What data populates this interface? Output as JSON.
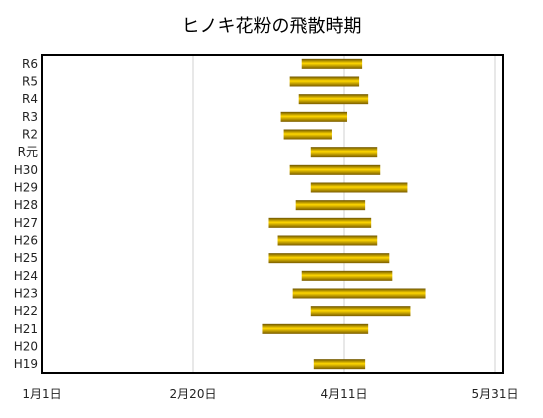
{
  "chart_data": {
    "type": "bar",
    "orientation": "horizontal",
    "subtype": "floating-range",
    "title": "ヒノキ花粉の飛散時期",
    "xlabel": "",
    "ylabel": "",
    "x_axis": {
      "unit": "date",
      "ticks": [
        "1月1日",
        "2月20日",
        "4月11日",
        "5月31日"
      ],
      "tick_day_of_year": [
        1,
        51,
        101,
        151
      ],
      "range_day_of_year": [
        1,
        151
      ]
    },
    "grid": true,
    "legend": "none",
    "bar_color_top": "#6b5200",
    "bar_color_mid": "#ffd700",
    "bar_color_bottom": "#7a5c00",
    "categories": [
      "R6",
      "R5",
      "R4",
      "R3",
      "R2",
      "R元",
      "H30",
      "H29",
      "H28",
      "H27",
      "H26",
      "H25",
      "H24",
      "H23",
      "H22",
      "H21",
      "H20",
      "H19"
    ],
    "series": [
      {
        "start": [
          "3月28日",
          "3月24日",
          "3月27日",
          "3月21日",
          "3月22日",
          "3月31日",
          "3月24日",
          "3月31日",
          "3月26日",
          "3月17日",
          "3月20日",
          "3月17日",
          "3月28日",
          "3月25日",
          "3月31日",
          "3月15日",
          null,
          "4月1日"
        ],
        "end": [
          "4月17日",
          "4月16日",
          "4月19日",
          "4月12日",
          "4月7日",
          "4月22日",
          "4月23日",
          "5月2日",
          "4月18日",
          "4月20日",
          "4月22日",
          "4月26日",
          "4月27日",
          "5月8日",
          "5月3日",
          "4月19日",
          null,
          "4月18日"
        ],
        "start_day_of_year": [
          87,
          83,
          86,
          80,
          81,
          90,
          83,
          90,
          85,
          76,
          79,
          76,
          87,
          84,
          90,
          74,
          null,
          91
        ],
        "end_day_of_year": [
          107,
          106,
          109,
          102,
          97,
          112,
          113,
          122,
          108,
          110,
          112,
          116,
          117,
          128,
          123,
          109,
          null,
          108
        ]
      }
    ]
  }
}
